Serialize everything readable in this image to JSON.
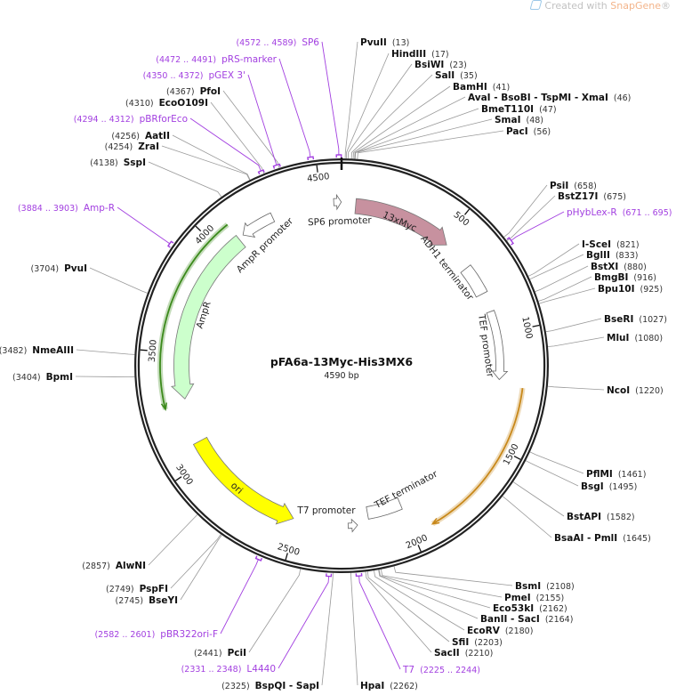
{
  "watermark": {
    "prefix": "Created with",
    "brand": "SnapGene",
    "suffix": "®"
  },
  "plasmid": {
    "name": "pFA6a-13Myc-His3MX6",
    "length_label": "4590 bp",
    "length": 4590
  },
  "ticks": [
    "500",
    "1000",
    "1500",
    "2000",
    "2500",
    "3000",
    "3500",
    "4000",
    "4500"
  ],
  "features": [
    {
      "label": "13xMyc",
      "start": 64,
      "end": 523,
      "direction": "cw",
      "style": "arrow",
      "color": "#c7919f"
    },
    {
      "label": "ADH1 terminator",
      "start": 663,
      "end": 803,
      "style": "box",
      "color": "#ffffff"
    },
    {
      "label": "TEF promoter",
      "start": 893,
      "end": 1211,
      "direction": "cw",
      "style": "open-arrow",
      "color": "#ffffff"
    },
    {
      "start": 1237,
      "end": 1913,
      "direction": "cw",
      "style": "line",
      "color": "#c8881a"
    },
    {
      "label": "TEF terminator",
      "start": 2002,
      "end": 2168,
      "style": "box",
      "color": "#ffffff"
    },
    {
      "label": "T7 promoter",
      "start": 2222,
      "end": 2265,
      "direction": "ccw",
      "style": "open-arrow",
      "color": "#ffffff"
    },
    {
      "label": "ori",
      "start": 2518,
      "end": 3086,
      "direction": "ccw",
      "style": "arrow",
      "color": "#ffff00"
    },
    {
      "label": "AmpR",
      "start": 3290,
      "end": 4093,
      "direction": "ccw",
      "style": "arrow",
      "color": "#ccffcc"
    },
    {
      "start": 3265,
      "end": 4093,
      "direction": "ccw",
      "style": "line",
      "color": "#3c8a1c"
    },
    {
      "label": "AmpR promoter",
      "start": 4118,
      "end": 4272,
      "direction": "ccw",
      "style": "open-arrow",
      "color": "#ffffff"
    },
    {
      "label": "SP6 promoter",
      "start": 4555,
      "end": 4589,
      "direction": "cw",
      "style": "open-arrow",
      "color": "#ffffff"
    }
  ],
  "sites": [
    {
      "name": "PvuII",
      "pos": "13"
    },
    {
      "name": "HindIII",
      "pos": "17"
    },
    {
      "name": "BsiWI",
      "pos": "23"
    },
    {
      "name": "SalI",
      "pos": "35"
    },
    {
      "name": "BamHI",
      "pos": "41"
    },
    {
      "name": "AvaI  - BsoBI - TspMI  - XmaI",
      "pos": "46"
    },
    {
      "name": "BmeT110I",
      "pos": "47"
    },
    {
      "name": "SmaI",
      "pos": "48"
    },
    {
      "name": "PacI",
      "pos": "56"
    },
    {
      "name": "PsiI",
      "pos": "658"
    },
    {
      "name": "BstZ17I",
      "pos": "675"
    },
    {
      "name": "I-SceI",
      "pos": "821"
    },
    {
      "name": "BglII",
      "pos": "833"
    },
    {
      "name": "BstXI",
      "pos": "880"
    },
    {
      "name": "BmgBI",
      "pos": "916"
    },
    {
      "name": "Bpu10I",
      "pos": "925"
    },
    {
      "name": "BseRI",
      "pos": "1027"
    },
    {
      "name": "MluI",
      "pos": "1080"
    },
    {
      "name": "NcoI",
      "pos": "1220"
    },
    {
      "name": "PflMI",
      "pos": "1461"
    },
    {
      "name": "BsgI",
      "pos": "1495"
    },
    {
      "name": "BstAPI",
      "pos": "1582"
    },
    {
      "name": "BsaAI  - PmlI",
      "pos": "1645"
    },
    {
      "name": "BsmI",
      "pos": "2108"
    },
    {
      "name": "PmeI",
      "pos": "2155"
    },
    {
      "name": "Eco53kI",
      "pos": "2162"
    },
    {
      "name": "BanII  - SacI",
      "pos": "2164"
    },
    {
      "name": "EcoRV",
      "pos": "2180"
    },
    {
      "name": "SfiI",
      "pos": "2203"
    },
    {
      "name": "SacII",
      "pos": "2210"
    },
    {
      "name": "HpaI",
      "pos": "2262"
    },
    {
      "name": "BspQI  - SapI",
      "pos": "2325"
    },
    {
      "name": "PciI",
      "pos": "2441"
    },
    {
      "name": "BseYI",
      "pos": "2745"
    },
    {
      "name": "PspFI",
      "pos": "2749"
    },
    {
      "name": "AlwNI",
      "pos": "2857"
    },
    {
      "name": "BpmI",
      "pos": "3404"
    },
    {
      "name": "NmeAIII",
      "pos": "3482"
    },
    {
      "name": "PvuI",
      "pos": "3704"
    },
    {
      "name": "SspI",
      "pos": "4138"
    },
    {
      "name": "ZraI",
      "pos": "4254"
    },
    {
      "name": "AatII",
      "pos": "4256"
    },
    {
      "name": "EcoO109I",
      "pos": "4310"
    },
    {
      "name": "PfoI",
      "pos": "4367"
    }
  ],
  "primers": [
    {
      "name": "pHybLex-R",
      "range": "(671 .. 695)",
      "start": 671,
      "end": 695
    },
    {
      "name": "T7",
      "range": "(2225 .. 2244)",
      "start": 2225,
      "end": 2244
    },
    {
      "name": "L4440",
      "range": "(2331 .. 2348)",
      "start": 2331,
      "end": 2348
    },
    {
      "name": "pBR322ori-F",
      "range": "(2582 .. 2601)",
      "start": 2582,
      "end": 2601
    },
    {
      "name": "Amp-R",
      "range": "(3884 .. 3903)",
      "start": 3884,
      "end": 3903
    },
    {
      "name": "pBRforEco",
      "range": "(4294 .. 4312)",
      "start": 4294,
      "end": 4312
    },
    {
      "name": "pGEX 3'",
      "range": "(4350 .. 4372)",
      "start": 4350,
      "end": 4372
    },
    {
      "name": "pRS-marker",
      "range": "(4472 .. 4491)",
      "start": 4472,
      "end": 4491
    },
    {
      "name": "SP6",
      "range": "(4572 .. 4589)",
      "start": 4572,
      "end": 4589
    }
  ]
}
